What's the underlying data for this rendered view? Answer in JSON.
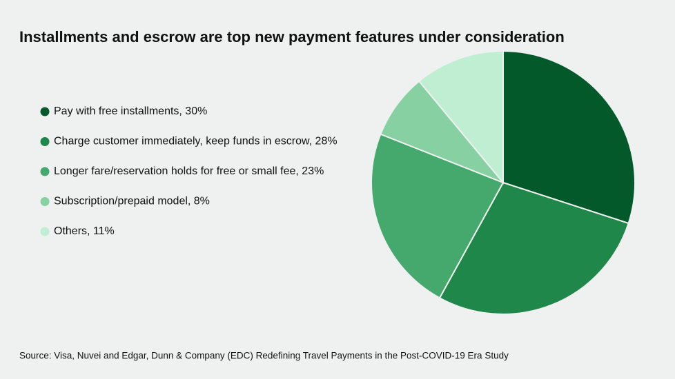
{
  "chart_data": {
    "type": "pie",
    "title": "Installments and escrow are top new payment features under consideration",
    "categories": [
      "Pay with free installments, 30%",
      "Charge customer immediately, keep funds in escrow, 28%",
      "Longer fare/reservation holds for free or small fee, 23%",
      "Subscription/prepaid model, 8%",
      "Others, 11%"
    ],
    "values": [
      30,
      28,
      23,
      8,
      11
    ],
    "colors": [
      "#03592a",
      "#20874a",
      "#45a96d",
      "#86d0a2",
      "#c0eed3"
    ],
    "source": "Source: Visa, Nuvei and Edgar, Dunn & Company (EDC) Redefining Travel Payments in the Post-COVID-19 Era Study"
  }
}
